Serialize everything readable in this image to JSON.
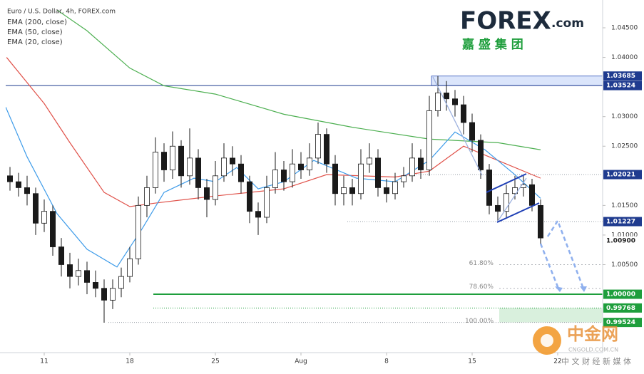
{
  "chart_data": {
    "type": "candlestick",
    "title": "Euro / U.S. Dollar, 4h, FOREX.com",
    "x": [
      -2,
      -1.5,
      -1,
      -0.5,
      0,
      0.5,
      1,
      1.5,
      2,
      2.5,
      3,
      3.5,
      4,
      4.5,
      5,
      5.5,
      6,
      6.5,
      7,
      7.5,
      8,
      8.5,
      9,
      9.5,
      10,
      10.5,
      11,
      11.5,
      12,
      12.5,
      13,
      13.5,
      14,
      14.5,
      15,
      15.5,
      16,
      16.5,
      17,
      17.5,
      18,
      18.5,
      19,
      19.5,
      20,
      20.5,
      21,
      21.5,
      22,
      22.5,
      23,
      23.5,
      24,
      24.5,
      25,
      25.5,
      26,
      26.5,
      27,
      27.5,
      28,
      28.5,
      29
    ],
    "open": [
      1.02,
      1.019,
      1.018,
      1.017,
      1.012,
      1.014,
      1.008,
      1.005,
      1.003,
      1.004,
      1.002,
      1.001,
      0.999,
      1.001,
      1.003,
      1.006,
      1.015,
      1.018,
      1.024,
      1.021,
      1.025,
      1.02,
      1.023,
      1.018,
      1.016,
      1.02,
      1.023,
      1.022,
      1.019,
      1.014,
      1.013,
      1.018,
      1.021,
      1.019,
      1.022,
      1.021,
      1.023,
      1.027,
      1.022,
      1.017,
      1.018,
      1.017,
      1.022,
      1.023,
      1.018,
      1.017,
      1.019,
      1.02,
      1.023,
      1.021,
      1.031,
      1.034,
      1.033,
      1.032,
      1.029,
      1.026,
      1.021,
      1.015,
      1.014,
      1.017,
      1.018,
      1.0185,
      1.015
    ],
    "high": [
      1.0215,
      1.0205,
      1.02,
      1.018,
      1.016,
      1.015,
      1.0095,
      1.007,
      1.006,
      1.0055,
      1.004,
      1.0025,
      1.0025,
      1.0045,
      1.008,
      1.0165,
      1.02,
      1.0265,
      1.0255,
      1.0275,
      1.026,
      1.028,
      1.0245,
      1.0195,
      1.0225,
      1.0255,
      1.025,
      1.0235,
      1.02,
      1.0155,
      1.02,
      1.024,
      1.0225,
      1.0245,
      1.024,
      1.0255,
      1.029,
      1.028,
      1.0235,
      1.02,
      1.0195,
      1.0245,
      1.0255,
      1.0245,
      1.0195,
      1.0205,
      1.0215,
      1.0255,
      1.0245,
      1.0335,
      1.03685,
      1.036,
      1.0345,
      1.0335,
      1.0305,
      1.027,
      1.022,
      1.0165,
      1.0185,
      1.02,
      1.02,
      1.0195,
      1.016
    ],
    "low": [
      1.0175,
      1.0165,
      1.015,
      1.01,
      1.0105,
      1.0065,
      1.003,
      1.001,
      1.0015,
      1.0,
      0.9995,
      0.9952,
      0.9975,
      0.9995,
      1.002,
      1.005,
      1.013,
      1.017,
      1.019,
      1.0195,
      1.018,
      1.0185,
      1.016,
      1.013,
      1.015,
      1.019,
      1.02,
      1.017,
      1.012,
      1.01,
      1.012,
      1.017,
      1.0175,
      1.018,
      1.0195,
      1.02,
      1.022,
      1.0205,
      1.015,
      1.015,
      1.015,
      1.016,
      1.0205,
      1.0165,
      1.0155,
      1.016,
      1.018,
      1.019,
      1.0195,
      1.02,
      1.03,
      1.031,
      1.03,
      1.027,
      1.024,
      1.0195,
      1.0135,
      1.0123,
      1.013,
      1.016,
      1.0165,
      1.014,
      1.0085
    ],
    "close": [
      1.019,
      1.018,
      1.017,
      1.012,
      1.014,
      1.008,
      1.005,
      1.003,
      1.004,
      1.002,
      1.001,
      0.999,
      1.001,
      1.003,
      1.006,
      1.015,
      1.018,
      1.024,
      1.021,
      1.025,
      1.02,
      1.023,
      1.018,
      1.016,
      1.02,
      1.023,
      1.022,
      1.019,
      1.014,
      1.013,
      1.018,
      1.021,
      1.019,
      1.022,
      1.021,
      1.023,
      1.027,
      1.022,
      1.017,
      1.018,
      1.017,
      1.022,
      1.023,
      1.018,
      1.017,
      1.019,
      1.02,
      1.023,
      1.021,
      1.031,
      1.034,
      1.033,
      1.032,
      1.029,
      1.026,
      1.021,
      1.015,
      1.014,
      1.017,
      1.018,
      1.0185,
      1.015,
      1.0095
    ],
    "up_color": "#ffffff",
    "down_color": "#1a1a1a",
    "series": [
      {
        "name": "EMA (200, close)",
        "color": "#4caf50",
        "x": [
          0.75,
          2.5,
          5,
          7,
          10,
          14,
          18,
          22.5,
          26.5,
          29
        ],
        "values": [
          1.048,
          1.0445,
          1.0382,
          1.0352,
          1.0338,
          1.0304,
          1.0282,
          1.0262,
          1.0256,
          1.0244
        ]
      },
      {
        "name": "EMA (50, close)",
        "color": "#e0524a",
        "x": [
          -2.2,
          0,
          1.5,
          3.5,
          5,
          6.5,
          10,
          14,
          16.5,
          20.5,
          22.5,
          24.5,
          26.5,
          29
        ],
        "values": [
          1.04,
          1.0322,
          1.0256,
          1.0172,
          1.0148,
          1.0154,
          1.0166,
          1.0178,
          1.0202,
          1.0198,
          1.0208,
          1.025,
          1.0226,
          1.0196
        ]
      },
      {
        "name": "EMA (20, close)",
        "color": "#3d9be9",
        "x": [
          -2.25,
          -1,
          0.75,
          2.5,
          4.25,
          5.75,
          7,
          8.75,
          10,
          11.25,
          12.5,
          14,
          15.75,
          18.25,
          20.5,
          22.5,
          24,
          25.75,
          27.5,
          29
        ],
        "values": [
          1.0316,
          1.0232,
          1.0136,
          1.0076,
          1.0046,
          1.0112,
          1.0172,
          1.0196,
          1.019,
          1.0214,
          1.0178,
          1.019,
          1.0226,
          1.0196,
          1.019,
          1.0226,
          1.0274,
          1.0244,
          1.0202,
          1.0162
        ]
      }
    ],
    "levels": [
      {
        "value": 1.03685,
        "label": "1.03685",
        "color": "#1f3b8f"
      },
      {
        "value": 1.03524,
        "label": "1.03524",
        "color": "#1f3b8f"
      },
      {
        "value": 1.02021,
        "label": "1.02021",
        "color": "#1f3b8f"
      },
      {
        "value": 1.01227,
        "label": "1.01227",
        "color": "#1f3b8f"
      },
      {
        "value": 1.009,
        "label": "1.00900",
        "color": "#ffffff"
      },
      {
        "value": 1.0,
        "label": "1.00000",
        "color": "#1e9e3c"
      },
      {
        "value": 0.99768,
        "label": "0.99768",
        "color": "#1e9e3c"
      },
      {
        "value": 0.99524,
        "label": "0.99524",
        "color": "#1e9e3c"
      }
    ],
    "fibs": [
      {
        "value": 1.005,
        "label": "61.80%"
      },
      {
        "value": 1.001,
        "label": "78.60%"
      },
      {
        "value": 0.99524,
        "label": "100.00%"
      }
    ],
    "xlim": [
      -2.25,
      32.625
    ],
    "xticks": [
      {
        "value": 0,
        "label": "11"
      },
      {
        "value": 5,
        "label": "18"
      },
      {
        "value": 10,
        "label": "25"
      },
      {
        "value": 15,
        "label": "Aug"
      },
      {
        "value": 20,
        "label": "8"
      },
      {
        "value": 25,
        "label": "15"
      },
      {
        "value": 30,
        "label": "22"
      }
    ],
    "ylim": [
      0.99014,
      1.04873
    ],
    "yticks": [
      {
        "value": 1.045,
        "label": "1.04500"
      },
      {
        "value": 1.04,
        "label": "1.04000"
      },
      {
        "value": 1.03,
        "label": "1.03000"
      },
      {
        "value": 1.025,
        "label": "1.02500"
      },
      {
        "value": 1.015,
        "label": "1.01500"
      },
      {
        "value": 1.01,
        "label": "1.01000"
      },
      {
        "value": 1.005,
        "label": "1.00500"
      }
    ]
  },
  "logo": {
    "brand": "FOREX",
    "suffix": ".com",
    "subtitle": "嘉 盛 集 团"
  },
  "watermark": {
    "name": "中金网",
    "site": "CNGOLD.COM.CN",
    "tagline": "中 文 财 经 新 媒 体"
  }
}
